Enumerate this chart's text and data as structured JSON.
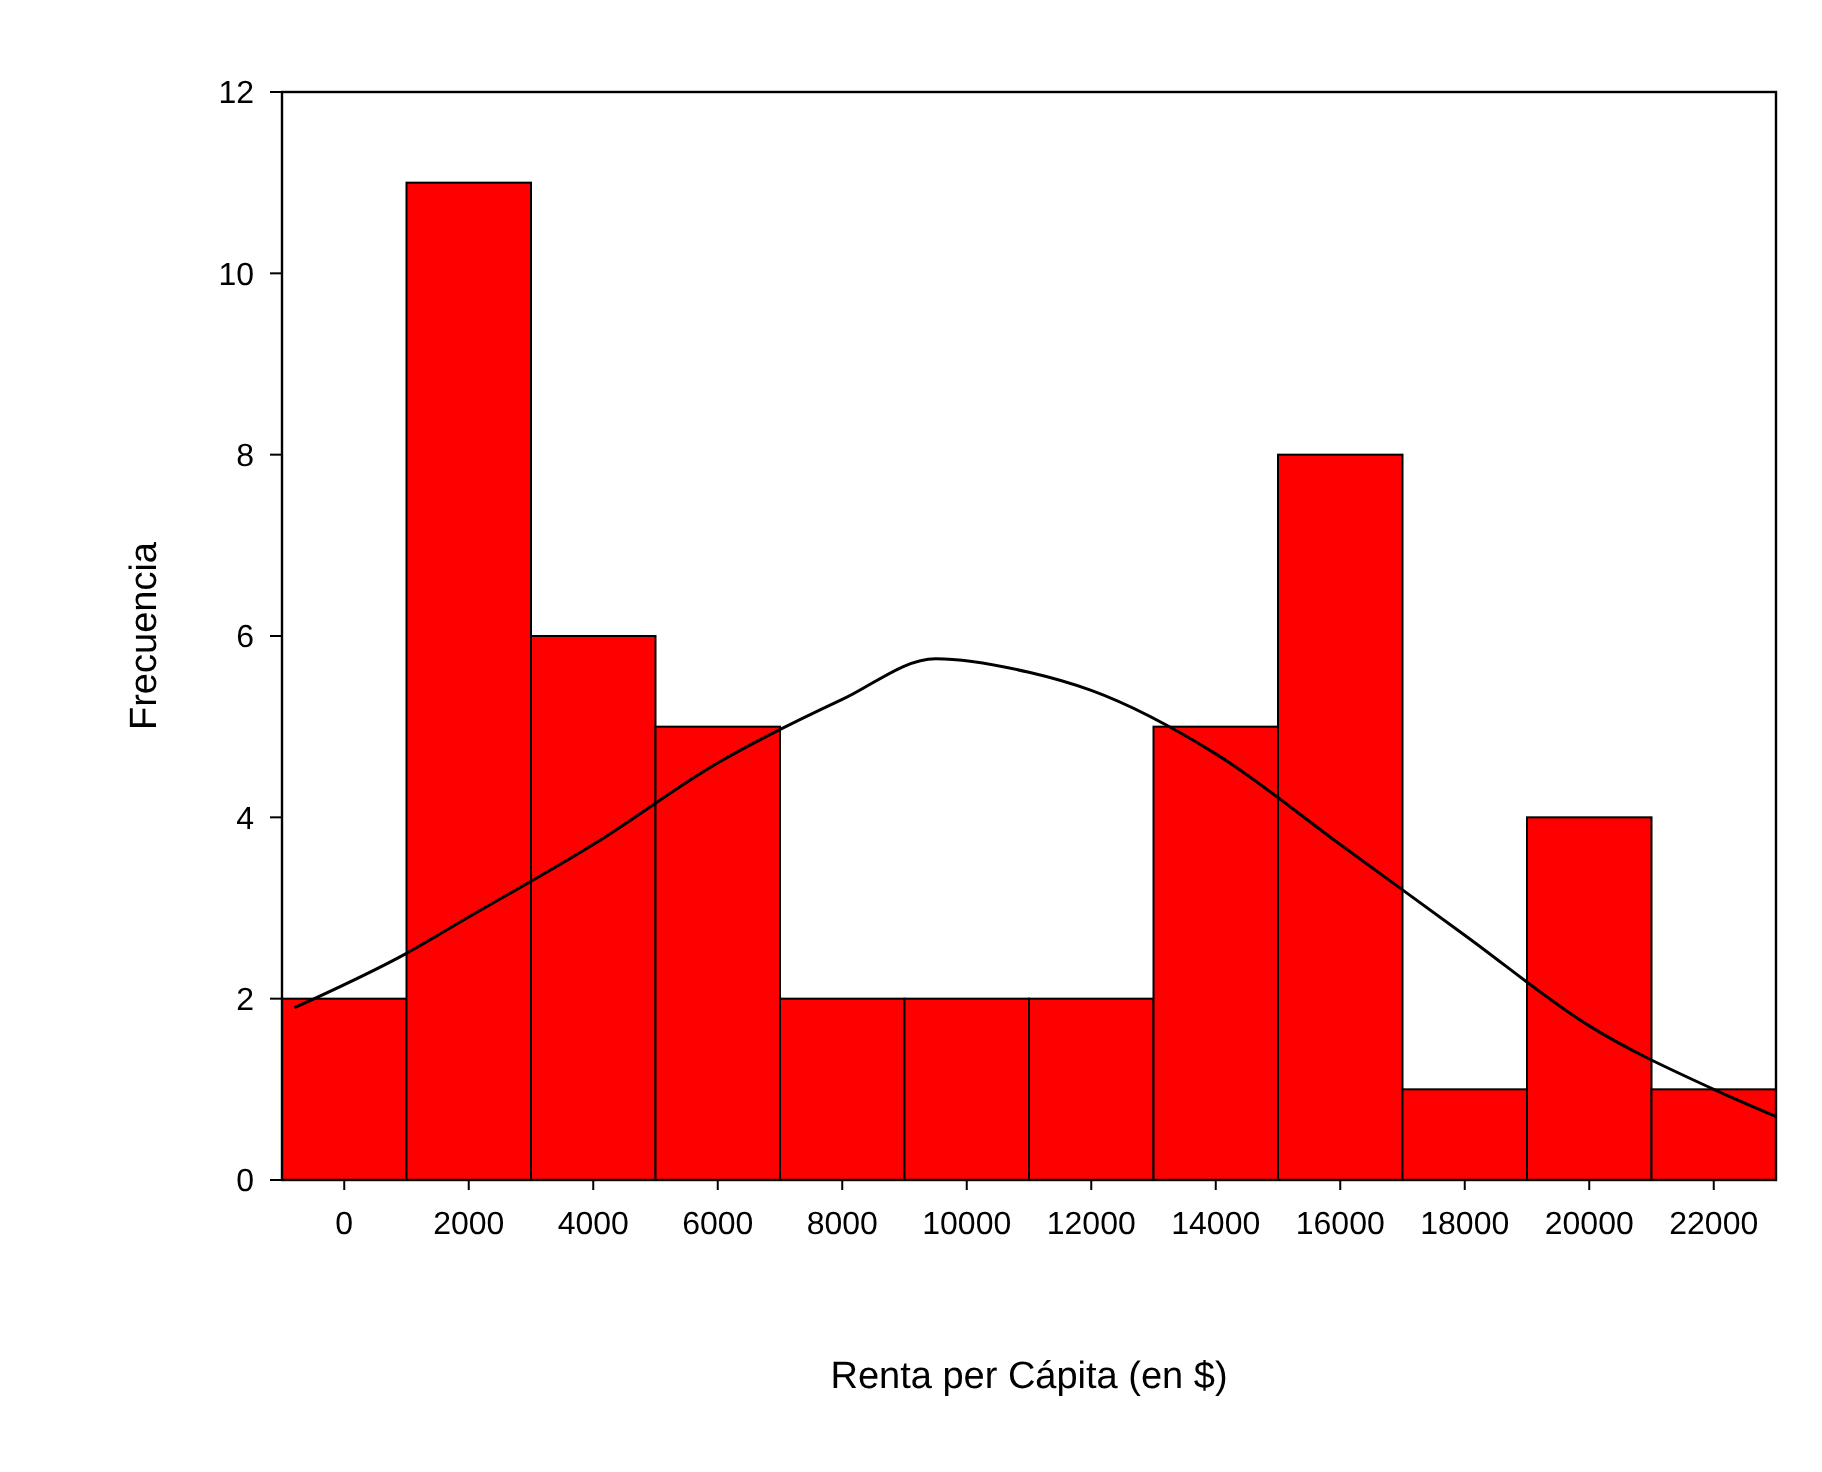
{
  "chart_data": {
    "type": "histogram",
    "xlabel": "Renta per Cápita (en $)",
    "ylabel": "Frecuencia",
    "bins": [
      -1000,
      1000,
      3000,
      5000,
      7000,
      9000,
      11000,
      13000,
      15000,
      17000,
      19000,
      21000,
      23000
    ],
    "values": [
      2,
      11,
      6,
      5,
      2,
      2,
      2,
      5,
      8,
      1,
      4,
      1
    ],
    "color": "#ff0000",
    "series": [
      {
        "type": "line",
        "color": "#000000",
        "x": [
          -800,
          1000,
          2000,
          4000,
          6000,
          8000,
          9500,
          11000,
          12000,
          14000,
          16000,
          18000,
          20000,
          22000,
          23000
        ],
        "values": [
          1.9,
          2.5,
          2.9,
          3.7,
          4.6,
          5.3,
          5.75,
          5.6,
          5.4,
          4.7,
          3.7,
          2.7,
          1.7,
          1.0,
          0.7
        ]
      }
    ],
    "xlim": [
      -1000,
      23000
    ],
    "xticks": [
      0,
      2000,
      4000,
      6000,
      8000,
      10000,
      12000,
      14000,
      16000,
      18000,
      20000,
      22000
    ],
    "ylim": [
      0,
      12
    ],
    "yticks": [
      0,
      2,
      4,
      6,
      8,
      10,
      12
    ]
  }
}
